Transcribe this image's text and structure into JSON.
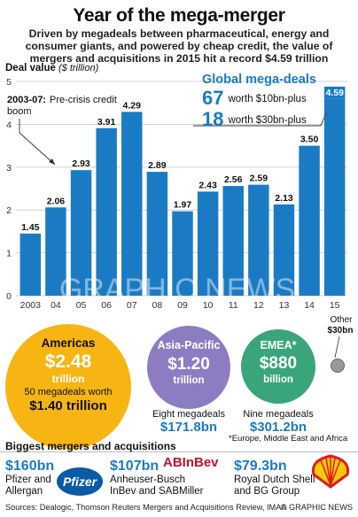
{
  "title": "Year of the mega-merger",
  "subtitle": "Driven by megadeals between pharmaceutical, energy and consumer giants, and powered by cheap credit, the value of mergers and acquisitions in 2015 hit a record $4.59 trillion",
  "chart_data": {
    "type": "bar",
    "ylabel": "Deal value",
    "yunit": "($ trillion)",
    "ylim": [
      0,
      5
    ],
    "yticks": [
      "0",
      "1",
      "2",
      "3",
      "4",
      "5"
    ],
    "categories": [
      "2003",
      "04",
      "05",
      "06",
      "07",
      "08",
      "09",
      "10",
      "11",
      "12",
      "13",
      "14",
      "15"
    ],
    "values": [
      1.45,
      2.06,
      2.93,
      3.91,
      4.29,
      2.89,
      1.97,
      2.43,
      2.56,
      2.59,
      2.13,
      3.5,
      4.59
    ],
    "value_labels": [
      "1.45",
      "2.06",
      "2.93",
      "3.91",
      "4.29",
      "2.89",
      "1.97",
      "2.43",
      "2.56",
      "2.59",
      "2.13",
      "3.50",
      "4.59"
    ],
    "grid": true,
    "annotation": {
      "label": "2003-07:",
      "text": "Pre-crisis credit boom"
    },
    "colors": {
      "bar": "#1a7bc4",
      "highlight": "#1a7bc4",
      "grid": "#c9c9c9"
    }
  },
  "mega_deals": {
    "title": "Global mega-deals",
    "rows": [
      {
        "count": "67",
        "text": "worth $10bn-plus"
      },
      {
        "count": "18",
        "text": "worth $30bn-plus"
      }
    ]
  },
  "regions": {
    "americas": {
      "name": "Americas",
      "value": "$2.48",
      "unit": "trillion",
      "note": "50 megadeals worth",
      "note_value": "$1.40 trillion",
      "color": "#f6b513"
    },
    "asia": {
      "name": "Asia-Pacific",
      "value": "$1.20",
      "unit": "trillion",
      "note": "Eight megadeals",
      "note_value": "$171.8bn",
      "color": "#8e7cc3"
    },
    "emea": {
      "name": "EMEA*",
      "value": "$880",
      "unit": "billion",
      "note": "Nine megadeals",
      "note_value": "$301.2bn",
      "footnote": "*Europe, Middle East and Africa",
      "color": "#3aa57a"
    },
    "other": {
      "name": "Other",
      "value": "$30bn",
      "color": "#999999"
    }
  },
  "biggest": {
    "title": "Biggest mergers and acquisitions",
    "deals": [
      {
        "amount": "$160bn",
        "name": "Pfizer and Allergan",
        "logo": "Pfizer"
      },
      {
        "amount": "$107bn",
        "name": "Anheuser-Busch InBev and SABMiller",
        "logo": "ABInBev"
      },
      {
        "amount": "$79.3bn",
        "name": "Royal Dutch Shell and BG Group",
        "logo": "Shell"
      }
    ]
  },
  "sources": "Sources: Dealogic, Thomson Reuters Mergers and Acquisitions Review, IMAA",
  "credit": "© GRAPHIC NEWS",
  "watermark": "GRAPHIC NEWS"
}
